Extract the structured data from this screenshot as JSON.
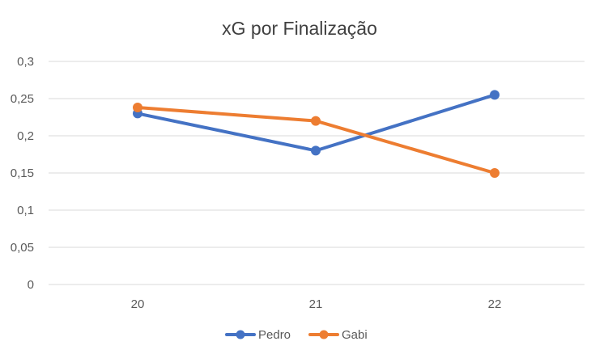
{
  "chart_data": {
    "type": "line",
    "title": "xG por Finalização",
    "categories": [
      "20",
      "21",
      "22"
    ],
    "series": [
      {
        "name": "Pedro",
        "values": [
          0.23,
          0.18,
          0.255
        ],
        "color": "#4472c4"
      },
      {
        "name": "Gabi",
        "values": [
          0.238,
          0.22,
          0.15
        ],
        "color": "#ed7d31"
      }
    ],
    "ylim": [
      0,
      0.3
    ],
    "yticks": [
      0,
      0.05,
      0.1,
      0.15,
      0.2,
      0.25,
      0.3
    ],
    "ytick_labels": [
      "0",
      "0,05",
      "0,1",
      "0,15",
      "0,2",
      "0,25",
      "0,3"
    ],
    "grid": true,
    "legend_position": "bottom"
  }
}
